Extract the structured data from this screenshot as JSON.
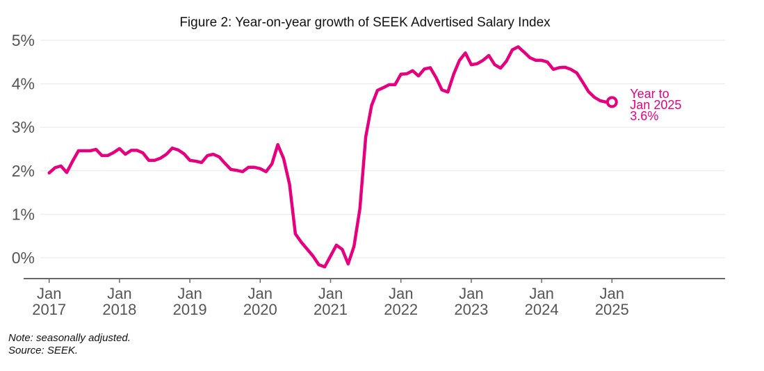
{
  "chart_data": {
    "type": "line",
    "title": "Figure 2: Year-on-year growth of SEEK Advertised Salary Index",
    "xlabel": "",
    "ylabel": "",
    "ylim": [
      -0.5,
      5
    ],
    "yticks": [
      0,
      1,
      2,
      3,
      4,
      5
    ],
    "ytick_labels": [
      "0%",
      "1%",
      "2%",
      "3%",
      "4%",
      "5%"
    ],
    "x_start": "2017-01",
    "x_end_axis": "2026-07",
    "xticks": [
      {
        "month_index": 0,
        "line1": "Jan",
        "line2": "2017"
      },
      {
        "month_index": 12,
        "line1": "Jan",
        "line2": "2018"
      },
      {
        "month_index": 24,
        "line1": "Jan",
        "line2": "2019"
      },
      {
        "month_index": 36,
        "line1": "Jan",
        "line2": "2020"
      },
      {
        "month_index": 48,
        "line1": "Jan",
        "line2": "2021"
      },
      {
        "month_index": 60,
        "line1": "Jan",
        "line2": "2022"
      },
      {
        "month_index": 72,
        "line1": "Jan",
        "line2": "2023"
      },
      {
        "month_index": 84,
        "line1": "Jan",
        "line2": "2024"
      },
      {
        "month_index": 96,
        "line1": "Jan",
        "line2": "2025"
      }
    ],
    "grid": true,
    "legend": "none",
    "series": [
      {
        "name": "SEEK Advertised Salary Index, year-on-year growth (%)",
        "color": "#e6007e",
        "frequency": "monthly",
        "start": "2017-01",
        "values": [
          1.95,
          2.07,
          2.11,
          1.96,
          2.22,
          2.46,
          2.46,
          2.46,
          2.49,
          2.35,
          2.35,
          2.42,
          2.51,
          2.38,
          2.47,
          2.47,
          2.41,
          2.24,
          2.24,
          2.29,
          2.38,
          2.52,
          2.48,
          2.39,
          2.24,
          2.22,
          2.19,
          2.35,
          2.38,
          2.32,
          2.17,
          2.03,
          2.01,
          1.98,
          2.08,
          2.08,
          2.05,
          1.98,
          2.16,
          2.6,
          2.28,
          1.69,
          0.55,
          0.36,
          0.2,
          0.04,
          -0.16,
          -0.21,
          0.04,
          0.29,
          0.19,
          -0.14,
          0.26,
          1.13,
          2.78,
          3.5,
          3.85,
          3.91,
          3.98,
          3.98,
          4.22,
          4.23,
          4.3,
          4.18,
          4.34,
          4.37,
          4.14,
          3.86,
          3.81,
          4.22,
          4.54,
          4.71,
          4.44,
          4.46,
          4.54,
          4.65,
          4.44,
          4.36,
          4.52,
          4.78,
          4.85,
          4.73,
          4.6,
          4.54,
          4.54,
          4.5,
          4.33,
          4.37,
          4.38,
          4.33,
          4.25,
          4.04,
          3.82,
          3.69,
          3.61,
          3.58,
          3.58
        ]
      }
    ],
    "annotations": [
      {
        "month_index": 96,
        "value": 3.58,
        "marker": "open-circle",
        "lines": [
          "Year to",
          "Jan 2025",
          "3.6%"
        ],
        "color": "#e6007e"
      }
    ]
  },
  "footnotes": {
    "note": "Note: seasonally adjusted.",
    "source": "Source: SEEK."
  }
}
